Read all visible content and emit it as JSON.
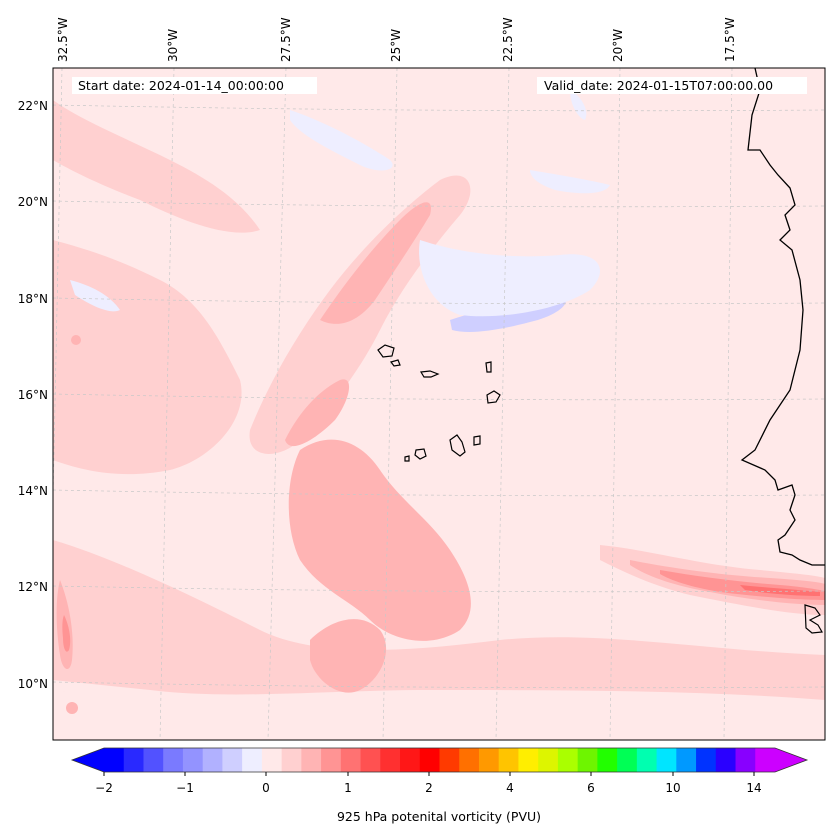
{
  "map": {
    "start_date": "Start date: 2024-01-14_00:00:00",
    "valid_date": "Valid_date: 2024-01-15T07:00:00.00",
    "lon_labels": [
      "32.5°W",
      "30°W",
      "27.5°W",
      "25°W",
      "22.5°W",
      "20°W",
      "17.5°W"
    ],
    "lat_labels": [
      "22°N",
      "20°N",
      "18°N",
      "16°N",
      "14°N",
      "12°N",
      "10°N"
    ],
    "gridlines": "dashed",
    "coastline_color": "#000000",
    "field": "925 hPa potenital vorticity (PVU)"
  },
  "colorbar": {
    "label": "925 hPa potenital vorticity (PVU)",
    "tick_labels": [
      "−2",
      "−1",
      "0",
      "1",
      "2",
      "4",
      "6",
      "10",
      "14"
    ],
    "extend": "both",
    "colors": [
      "#0000ff",
      "#2929ff",
      "#5252ff",
      "#7a7aff",
      "#9393ff",
      "#b1b1ff",
      "#cfcfff",
      "#eeeeff",
      "#ffe9e9",
      "#ffd0d0",
      "#ffb4b4",
      "#ff9494",
      "#ff7272",
      "#ff5151",
      "#ff3030",
      "#ff1717",
      "#ff0000",
      "#ff3a00",
      "#ff7000",
      "#ff9900",
      "#ffc400",
      "#ffee00",
      "#ddf500",
      "#aaff00",
      "#6ef500",
      "#22ff00",
      "#00ff55",
      "#00ffb0",
      "#00e5ff",
      "#0099ff",
      "#0033ff",
      "#2a00ff",
      "#8800ff",
      "#cc00ff"
    ],
    "left_extend_color": "#0000ff",
    "right_extend_color": "#cc00ff"
  }
}
